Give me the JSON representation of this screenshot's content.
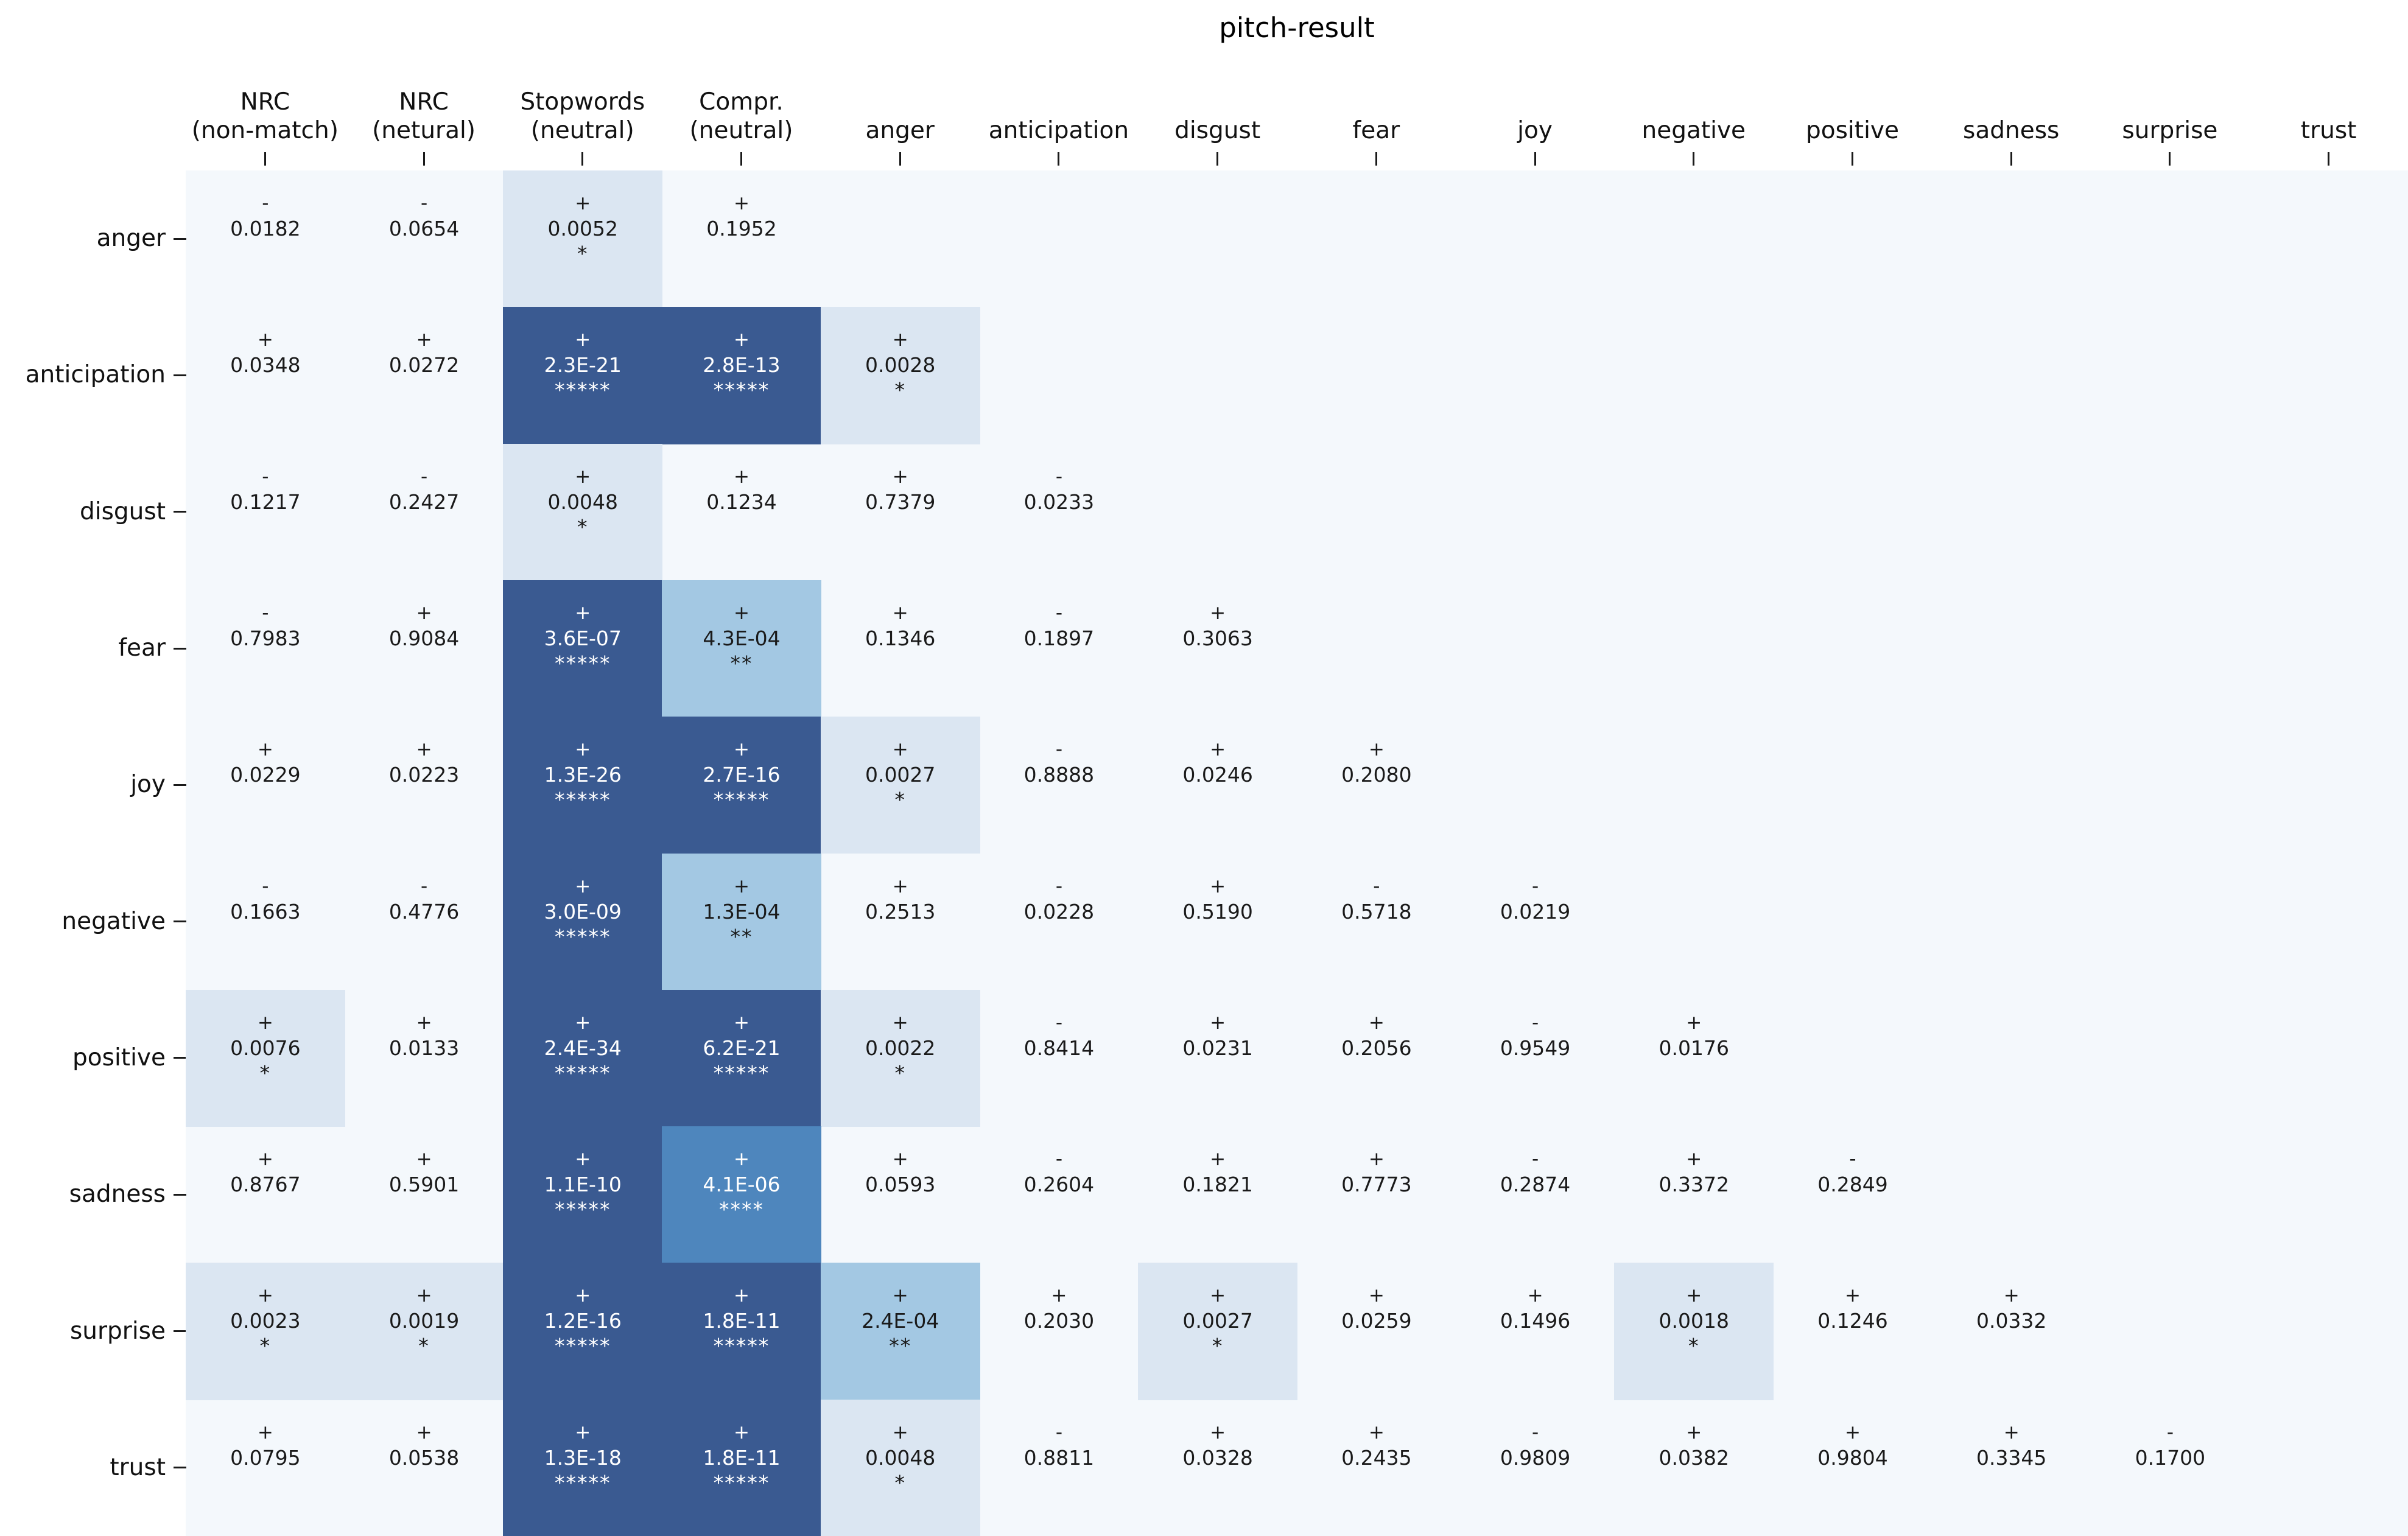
{
  "chart_data": {
    "type": "heatmap",
    "title": "pitch-result",
    "legend_position": "none",
    "grid": "off",
    "background_color": "#f4f8fc",
    "page_color": "#ffffff",
    "tick_color": "#1a1a1a",
    "significance_colors": {
      "": "transparent",
      "*": "#dbe6f2",
      "**": "#a3c8e3",
      "***": "#719fcc",
      "****": "#4e86bd",
      "*****": "#3a5a91"
    },
    "significance_text_colors": {
      "": "#1a1a1a",
      "*": "#1a1a1a",
      "**": "#1a1a1a",
      "***": "#ffffff",
      "****": "#ffffff",
      "*****": "#ffffff"
    },
    "x_labels": [
      "NRC\n(non-match)",
      "NRC\n(netural)",
      "Stopwords\n(neutral)",
      "Compr.\n(neutral)",
      "anger",
      "anticipation",
      "disgust",
      "fear",
      "joy",
      "negative",
      "positive",
      "sadness",
      "surprise",
      "trust"
    ],
    "y_labels": [
      "anger",
      "anticipation",
      "disgust",
      "fear",
      "joy",
      "negative",
      "positive",
      "sadness",
      "surprise",
      "trust"
    ],
    "cells": [
      {
        "r": 0,
        "c": 0,
        "sign": "-",
        "p": "0.0182",
        "stars": ""
      },
      {
        "r": 0,
        "c": 1,
        "sign": "-",
        "p": "0.0654",
        "stars": ""
      },
      {
        "r": 0,
        "c": 2,
        "sign": "+",
        "p": "0.0052",
        "stars": "*"
      },
      {
        "r": 0,
        "c": 3,
        "sign": "+",
        "p": "0.1952",
        "stars": ""
      },
      {
        "r": 1,
        "c": 0,
        "sign": "+",
        "p": "0.0348",
        "stars": ""
      },
      {
        "r": 1,
        "c": 1,
        "sign": "+",
        "p": "0.0272",
        "stars": ""
      },
      {
        "r": 1,
        "c": 2,
        "sign": "+",
        "p": "2.3E-21",
        "stars": "*****"
      },
      {
        "r": 1,
        "c": 3,
        "sign": "+",
        "p": "2.8E-13",
        "stars": "*****"
      },
      {
        "r": 1,
        "c": 4,
        "sign": "+",
        "p": "0.0028",
        "stars": "*"
      },
      {
        "r": 2,
        "c": 0,
        "sign": "-",
        "p": "0.1217",
        "stars": ""
      },
      {
        "r": 2,
        "c": 1,
        "sign": "-",
        "p": "0.2427",
        "stars": ""
      },
      {
        "r": 2,
        "c": 2,
        "sign": "+",
        "p": "0.0048",
        "stars": "*"
      },
      {
        "r": 2,
        "c": 3,
        "sign": "+",
        "p": "0.1234",
        "stars": ""
      },
      {
        "r": 2,
        "c": 4,
        "sign": "+",
        "p": "0.7379",
        "stars": ""
      },
      {
        "r": 2,
        "c": 5,
        "sign": "-",
        "p": "0.0233",
        "stars": ""
      },
      {
        "r": 3,
        "c": 0,
        "sign": "-",
        "p": "0.7983",
        "stars": ""
      },
      {
        "r": 3,
        "c": 1,
        "sign": "+",
        "p": "0.9084",
        "stars": ""
      },
      {
        "r": 3,
        "c": 2,
        "sign": "+",
        "p": "3.6E-07",
        "stars": "*****"
      },
      {
        "r": 3,
        "c": 3,
        "sign": "+",
        "p": "4.3E-04",
        "stars": "**"
      },
      {
        "r": 3,
        "c": 4,
        "sign": "+",
        "p": "0.1346",
        "stars": ""
      },
      {
        "r": 3,
        "c": 5,
        "sign": "-",
        "p": "0.1897",
        "stars": ""
      },
      {
        "r": 3,
        "c": 6,
        "sign": "+",
        "p": "0.3063",
        "stars": ""
      },
      {
        "r": 4,
        "c": 0,
        "sign": "+",
        "p": "0.0229",
        "stars": ""
      },
      {
        "r": 4,
        "c": 1,
        "sign": "+",
        "p": "0.0223",
        "stars": ""
      },
      {
        "r": 4,
        "c": 2,
        "sign": "+",
        "p": "1.3E-26",
        "stars": "*****"
      },
      {
        "r": 4,
        "c": 3,
        "sign": "+",
        "p": "2.7E-16",
        "stars": "*****"
      },
      {
        "r": 4,
        "c": 4,
        "sign": "+",
        "p": "0.0027",
        "stars": "*"
      },
      {
        "r": 4,
        "c": 5,
        "sign": "-",
        "p": "0.8888",
        "stars": ""
      },
      {
        "r": 4,
        "c": 6,
        "sign": "+",
        "p": "0.0246",
        "stars": ""
      },
      {
        "r": 4,
        "c": 7,
        "sign": "+",
        "p": "0.2080",
        "stars": ""
      },
      {
        "r": 5,
        "c": 0,
        "sign": "-",
        "p": "0.1663",
        "stars": ""
      },
      {
        "r": 5,
        "c": 1,
        "sign": "-",
        "p": "0.4776",
        "stars": ""
      },
      {
        "r": 5,
        "c": 2,
        "sign": "+",
        "p": "3.0E-09",
        "stars": "*****"
      },
      {
        "r": 5,
        "c": 3,
        "sign": "+",
        "p": "1.3E-04",
        "stars": "**"
      },
      {
        "r": 5,
        "c": 4,
        "sign": "+",
        "p": "0.2513",
        "stars": ""
      },
      {
        "r": 5,
        "c": 5,
        "sign": "-",
        "p": "0.0228",
        "stars": ""
      },
      {
        "r": 5,
        "c": 6,
        "sign": "+",
        "p": "0.5190",
        "stars": ""
      },
      {
        "r": 5,
        "c": 7,
        "sign": "-",
        "p": "0.5718",
        "stars": ""
      },
      {
        "r": 5,
        "c": 8,
        "sign": "-",
        "p": "0.0219",
        "stars": ""
      },
      {
        "r": 6,
        "c": 0,
        "sign": "+",
        "p": "0.0076",
        "stars": "*"
      },
      {
        "r": 6,
        "c": 1,
        "sign": "+",
        "p": "0.0133",
        "stars": ""
      },
      {
        "r": 6,
        "c": 2,
        "sign": "+",
        "p": "2.4E-34",
        "stars": "*****"
      },
      {
        "r": 6,
        "c": 3,
        "sign": "+",
        "p": "6.2E-21",
        "stars": "*****"
      },
      {
        "r": 6,
        "c": 4,
        "sign": "+",
        "p": "0.0022",
        "stars": "*"
      },
      {
        "r": 6,
        "c": 5,
        "sign": "-",
        "p": "0.8414",
        "stars": ""
      },
      {
        "r": 6,
        "c": 6,
        "sign": "+",
        "p": "0.0231",
        "stars": ""
      },
      {
        "r": 6,
        "c": 7,
        "sign": "+",
        "p": "0.2056",
        "stars": ""
      },
      {
        "r": 6,
        "c": 8,
        "sign": "-",
        "p": "0.9549",
        "stars": ""
      },
      {
        "r": 6,
        "c": 9,
        "sign": "+",
        "p": "0.0176",
        "stars": ""
      },
      {
        "r": 7,
        "c": 0,
        "sign": "+",
        "p": "0.8767",
        "stars": ""
      },
      {
        "r": 7,
        "c": 1,
        "sign": "+",
        "p": "0.5901",
        "stars": ""
      },
      {
        "r": 7,
        "c": 2,
        "sign": "+",
        "p": "1.1E-10",
        "stars": "*****"
      },
      {
        "r": 7,
        "c": 3,
        "sign": "+",
        "p": "4.1E-06",
        "stars": "****"
      },
      {
        "r": 7,
        "c": 4,
        "sign": "+",
        "p": "0.0593",
        "stars": ""
      },
      {
        "r": 7,
        "c": 5,
        "sign": "-",
        "p": "0.2604",
        "stars": ""
      },
      {
        "r": 7,
        "c": 6,
        "sign": "+",
        "p": "0.1821",
        "stars": ""
      },
      {
        "r": 7,
        "c": 7,
        "sign": "+",
        "p": "0.7773",
        "stars": ""
      },
      {
        "r": 7,
        "c": 8,
        "sign": "-",
        "p": "0.2874",
        "stars": ""
      },
      {
        "r": 7,
        "c": 9,
        "sign": "+",
        "p": "0.3372",
        "stars": ""
      },
      {
        "r": 7,
        "c": 10,
        "sign": "-",
        "p": "0.2849",
        "stars": ""
      },
      {
        "r": 8,
        "c": 0,
        "sign": "+",
        "p": "0.0023",
        "stars": "*"
      },
      {
        "r": 8,
        "c": 1,
        "sign": "+",
        "p": "0.0019",
        "stars": "*"
      },
      {
        "r": 8,
        "c": 2,
        "sign": "+",
        "p": "1.2E-16",
        "stars": "*****"
      },
      {
        "r": 8,
        "c": 3,
        "sign": "+",
        "p": "1.8E-11",
        "stars": "*****"
      },
      {
        "r": 8,
        "c": 4,
        "sign": "+",
        "p": "2.4E-04",
        "stars": "**"
      },
      {
        "r": 8,
        "c": 5,
        "sign": "+",
        "p": "0.2030",
        "stars": ""
      },
      {
        "r": 8,
        "c": 6,
        "sign": "+",
        "p": "0.0027",
        "stars": "*"
      },
      {
        "r": 8,
        "c": 7,
        "sign": "+",
        "p": "0.0259",
        "stars": ""
      },
      {
        "r": 8,
        "c": 8,
        "sign": "+",
        "p": "0.1496",
        "stars": ""
      },
      {
        "r": 8,
        "c": 9,
        "sign": "+",
        "p": "0.0018",
        "stars": "*"
      },
      {
        "r": 8,
        "c": 10,
        "sign": "+",
        "p": "0.1246",
        "stars": ""
      },
      {
        "r": 8,
        "c": 11,
        "sign": "+",
        "p": "0.0332",
        "stars": ""
      },
      {
        "r": 9,
        "c": 0,
        "sign": "+",
        "p": "0.0795",
        "stars": ""
      },
      {
        "r": 9,
        "c": 1,
        "sign": "+",
        "p": "0.0538",
        "stars": ""
      },
      {
        "r": 9,
        "c": 2,
        "sign": "+",
        "p": "1.3E-18",
        "stars": "*****"
      },
      {
        "r": 9,
        "c": 3,
        "sign": "+",
        "p": "1.8E-11",
        "stars": "*****"
      },
      {
        "r": 9,
        "c": 4,
        "sign": "+",
        "p": "0.0048",
        "stars": "*"
      },
      {
        "r": 9,
        "c": 5,
        "sign": "-",
        "p": "0.8811",
        "stars": ""
      },
      {
        "r": 9,
        "c": 6,
        "sign": "+",
        "p": "0.0328",
        "stars": ""
      },
      {
        "r": 9,
        "c": 7,
        "sign": "+",
        "p": "0.2435",
        "stars": ""
      },
      {
        "r": 9,
        "c": 8,
        "sign": "-",
        "p": "0.9809",
        "stars": ""
      },
      {
        "r": 9,
        "c": 9,
        "sign": "+",
        "p": "0.0382",
        "stars": ""
      },
      {
        "r": 9,
        "c": 10,
        "sign": "+",
        "p": "0.9804",
        "stars": ""
      },
      {
        "r": 9,
        "c": 11,
        "sign": "+",
        "p": "0.3345",
        "stars": ""
      },
      {
        "r": 9,
        "c": 12,
        "sign": "-",
        "p": "0.1700",
        "stars": ""
      }
    ]
  }
}
